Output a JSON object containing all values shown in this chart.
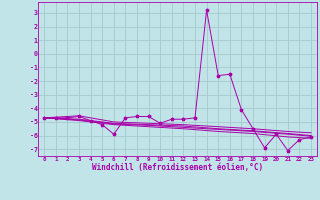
{
  "xlabel": "Windchill (Refroidissement éolien,°C)",
  "background_color": "#c0e4e8",
  "line_color": "#aa00aa",
  "grid_color": "#a8c8cc",
  "marker": "*",
  "xlim": [
    -0.5,
    23.5
  ],
  "ylim": [
    -7.5,
    3.8
  ],
  "yticks": [
    3,
    2,
    1,
    0,
    -1,
    -2,
    -3,
    -4,
    -5,
    -6,
    -7
  ],
  "xticks": [
    0,
    1,
    2,
    3,
    4,
    5,
    6,
    7,
    8,
    9,
    10,
    11,
    12,
    13,
    14,
    15,
    16,
    17,
    18,
    19,
    20,
    21,
    22,
    23
  ],
  "series": [
    [
      0,
      -4.7
    ],
    [
      1,
      -4.7
    ],
    [
      2,
      -4.7
    ],
    [
      3,
      -4.6
    ],
    [
      4,
      -4.9
    ],
    [
      5,
      -5.2
    ],
    [
      6,
      -5.9
    ],
    [
      7,
      -4.7
    ],
    [
      8,
      -4.6
    ],
    [
      9,
      -4.6
    ],
    [
      10,
      -5.1
    ],
    [
      11,
      -4.8
    ],
    [
      12,
      -4.8
    ],
    [
      13,
      -4.7
    ],
    [
      14,
      3.2
    ],
    [
      15,
      -1.6
    ],
    [
      16,
      -1.5
    ],
    [
      17,
      -4.1
    ],
    [
      18,
      -5.5
    ],
    [
      19,
      -6.9
    ],
    [
      20,
      -5.9
    ],
    [
      21,
      -7.1
    ],
    [
      22,
      -6.3
    ],
    [
      23,
      -6.1
    ]
  ],
  "extra_lines": [
    [
      [
        0,
        -4.7
      ],
      [
        3,
        -4.55
      ],
      [
        6,
        -5.0
      ],
      [
        9,
        -5.1
      ],
      [
        12,
        -5.2
      ],
      [
        15,
        -5.35
      ],
      [
        18,
        -5.5
      ],
      [
        21,
        -5.7
      ],
      [
        23,
        -5.8
      ]
    ],
    [
      [
        0,
        -4.7
      ],
      [
        3,
        -4.8
      ],
      [
        6,
        -5.1
      ],
      [
        9,
        -5.2
      ],
      [
        12,
        -5.3
      ],
      [
        15,
        -5.5
      ],
      [
        18,
        -5.65
      ],
      [
        21,
        -5.85
      ],
      [
        23,
        -6.0
      ]
    ],
    [
      [
        0,
        -4.7
      ],
      [
        3,
        -4.85
      ],
      [
        6,
        -5.15
      ],
      [
        9,
        -5.25
      ],
      [
        12,
        -5.4
      ],
      [
        15,
        -5.55
      ],
      [
        18,
        -5.7
      ],
      [
        21,
        -5.9
      ],
      [
        23,
        -6.05
      ]
    ],
    [
      [
        0,
        -4.7
      ],
      [
        3,
        -4.9
      ],
      [
        6,
        -5.2
      ],
      [
        9,
        -5.35
      ],
      [
        12,
        -5.5
      ],
      [
        15,
        -5.7
      ],
      [
        18,
        -5.85
      ],
      [
        21,
        -6.1
      ],
      [
        23,
        -6.2
      ]
    ]
  ]
}
